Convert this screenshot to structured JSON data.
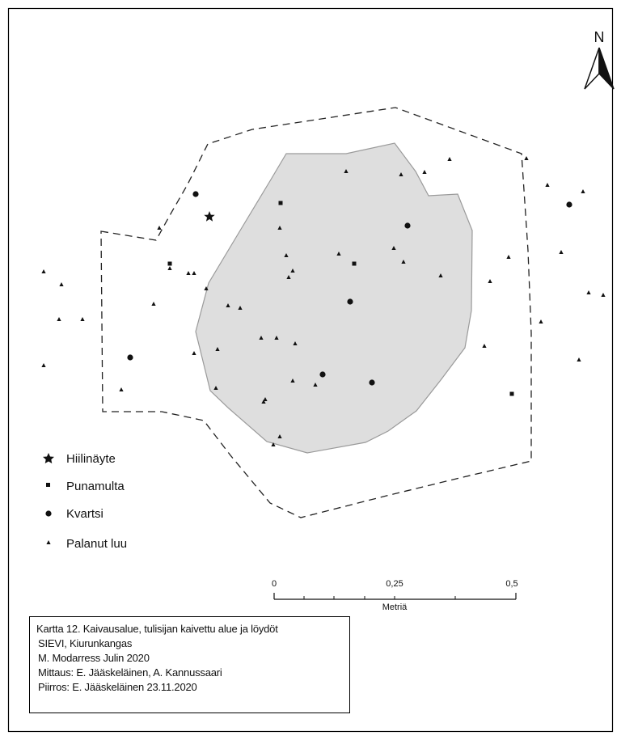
{
  "north_arrow": {
    "label": "N",
    "icon": "north-arrow-icon"
  },
  "legend": [
    {
      "key": "charcoal",
      "label": "Hiilinäyte",
      "icon": "star-icon"
    },
    {
      "key": "ochre",
      "label": "Punamulta",
      "icon": "square-icon"
    },
    {
      "key": "quartz",
      "label": "Kvartsi",
      "icon": "circle-icon"
    },
    {
      "key": "bone",
      "label": "Palanut luu",
      "icon": "triangle-icon"
    }
  ],
  "scale_bar": {
    "tick_labels": [
      "0",
      "0,25",
      "0,5"
    ],
    "unit": "Metriä"
  },
  "caption": {
    "title": "Kartta 12. Kaivausalue, tulisijan kaivettu alue ja löydöt",
    "site": "SIEVI, Kiurunkangas",
    "excavator": "M. Modarress Julin 2020",
    "survey": "Mittaus: E. Jääskeläinen, A. Kannussaari",
    "drawing": "Piirros: E. Jääskeläinen 23.11.2020"
  },
  "colors": {
    "hearth_fill": "#dedede",
    "hearth_stroke": "#9a9a9a",
    "boundary": "#222222",
    "marker": "#111111"
  }
}
